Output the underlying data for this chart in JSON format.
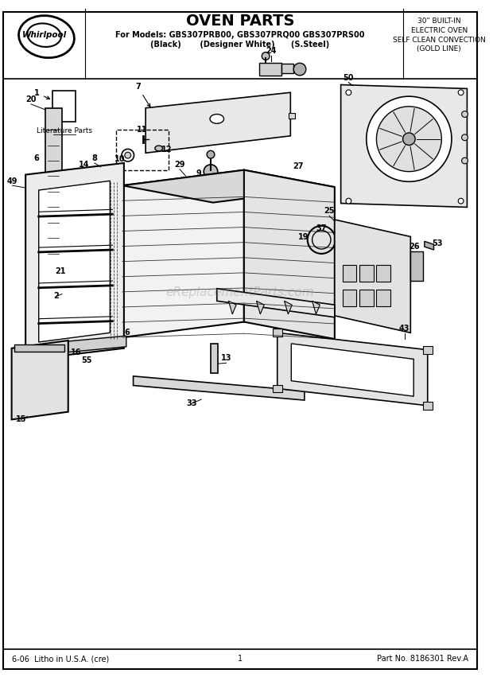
{
  "title": "OVEN PARTS",
  "subtitle_line1": "For Models: GBS307PRB00, GBS307PRQ00 GBS307PRS00",
  "subtitle_line2": "(Black)       (Designer White)      (S.Steel)",
  "right_header_line1": "30\" BUILT-IN",
  "right_header_line2": "ELECTRIC OVEN",
  "right_header_line3": "SELF CLEAN CONVECTION",
  "right_header_line4": "(GOLD LINE)",
  "footer_left": "6-06  Litho in U.S.A. (cre)",
  "footer_center": "1",
  "footer_right": "Part No. 8186301 Rev.A",
  "bg_color": "#ffffff",
  "border_color": "#000000",
  "text_color": "#000000",
  "whirlpool_text": "Whirlpool",
  "watermark": "eReplacementParts.com",
  "literature_link": "Literature Parts"
}
